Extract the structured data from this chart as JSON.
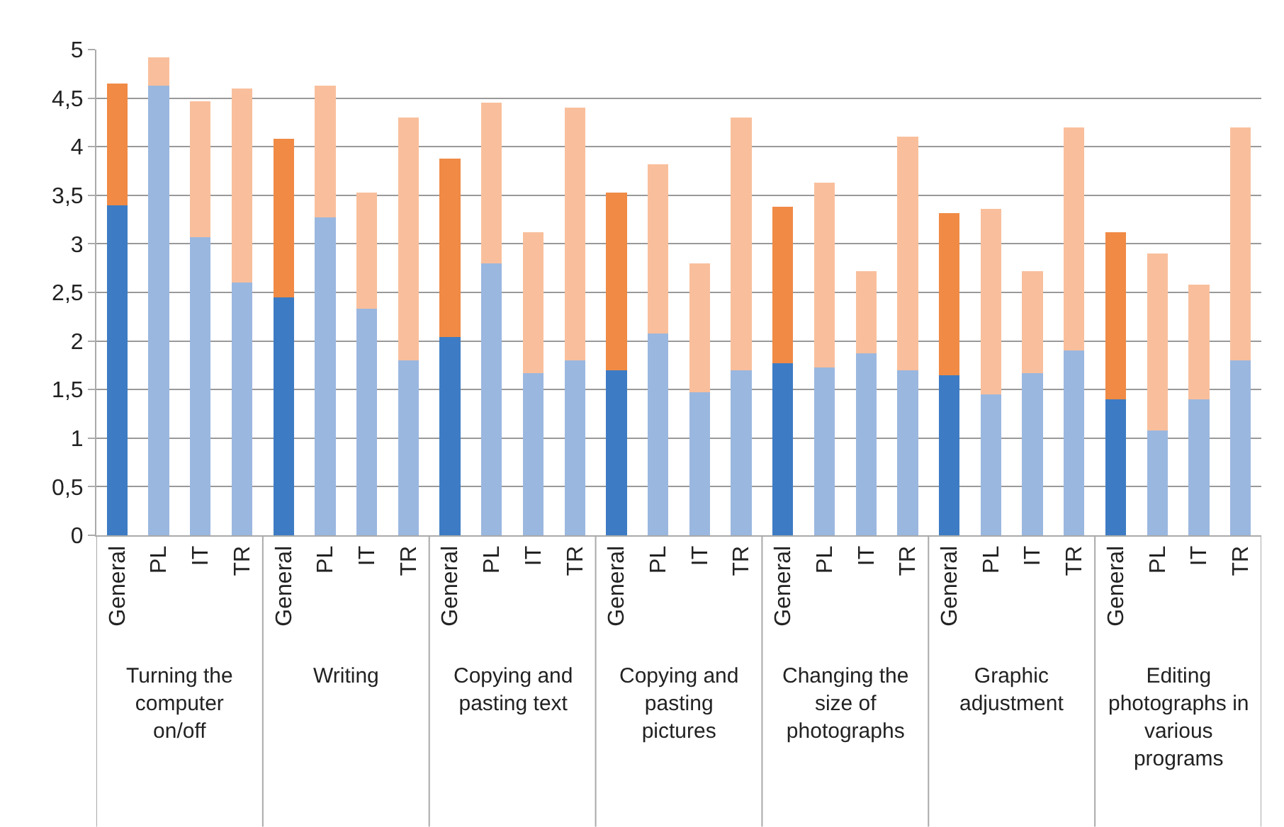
{
  "chart_data": {
    "type": "bar",
    "stacked": true,
    "grid": "y",
    "categories": [
      "General",
      "PL",
      "IT",
      "TR",
      "General",
      "PL",
      "IT",
      "TR",
      "General",
      "PL",
      "IT",
      "TR",
      "General",
      "PL",
      "IT",
      "TR",
      "General",
      "PL",
      "IT",
      "TR",
      "General",
      "PL",
      "IT",
      "TR",
      "General",
      "PL",
      "IT",
      "TR"
    ],
    "series": [
      {
        "colors": [
          "#3d7cc4",
          "#9ab7df",
          "#9ab7df",
          "#9ab7df",
          "#3d7cc4",
          "#9ab7df",
          "#9ab7df",
          "#9ab7df",
          "#3d7cc4",
          "#9ab7df",
          "#9ab7df",
          "#9ab7df",
          "#3d7cc4",
          "#9ab7df",
          "#9ab7df",
          "#9ab7df",
          "#3d7cc4",
          "#9ab7df",
          "#9ab7df",
          "#9ab7df",
          "#3d7cc4",
          "#9ab7df",
          "#9ab7df",
          "#9ab7df",
          "#3d7cc4",
          "#9ab7df",
          "#9ab7df",
          "#9ab7df"
        ],
        "values": [
          3.4,
          4.63,
          3.07,
          2.6,
          2.45,
          3.27,
          2.33,
          1.8,
          2.04,
          2.8,
          1.67,
          1.8,
          1.7,
          2.08,
          1.47,
          1.7,
          1.77,
          1.73,
          1.87,
          1.7,
          1.65,
          1.45,
          1.67,
          1.9,
          1.4,
          1.08,
          1.4,
          1.8
        ]
      },
      {
        "colors": [
          "#f08a45",
          "#f9bf9c",
          "#f9bf9c",
          "#f9bf9c",
          "#f08a45",
          "#f9bf9c",
          "#f9bf9c",
          "#f9bf9c",
          "#f08a45",
          "#f9bf9c",
          "#f9bf9c",
          "#f9bf9c",
          "#f08a45",
          "#f9bf9c",
          "#f9bf9c",
          "#f9bf9c",
          "#f08a45",
          "#f9bf9c",
          "#f9bf9c",
          "#f9bf9c",
          "#f08a45",
          "#f9bf9c",
          "#f9bf9c",
          "#f9bf9c",
          "#f08a45",
          "#f9bf9c",
          "#f9bf9c",
          "#f9bf9c"
        ],
        "values": [
          1.25,
          0.29,
          1.4,
          2.0,
          1.63,
          1.36,
          1.2,
          2.5,
          1.84,
          1.65,
          1.45,
          2.6,
          1.83,
          1.74,
          1.33,
          2.6,
          1.61,
          1.9,
          0.85,
          2.4,
          1.67,
          1.91,
          1.05,
          2.3,
          1.72,
          1.82,
          1.18,
          2.4
        ]
      }
    ],
    "ylim": [
      0,
      5
    ],
    "yticks": [
      0,
      {
        "value": 0.5,
        "label": "0,5"
      },
      1,
      {
        "value": 1.5,
        "label": "1,5"
      },
      2,
      {
        "value": 2.5,
        "label": "2,5"
      },
      3,
      {
        "value": 3.5,
        "label": "3,5"
      },
      4,
      {
        "value": 4.5,
        "label": "4,5"
      },
      5
    ],
    "annotations": [
      "Turning the computer on/off",
      "Writing",
      "Copying and pasting text",
      "Copying and pasting pictures",
      "Changing the size of photographs",
      "Graphic adjustment",
      "Editing photographs in various programs"
    ]
  }
}
